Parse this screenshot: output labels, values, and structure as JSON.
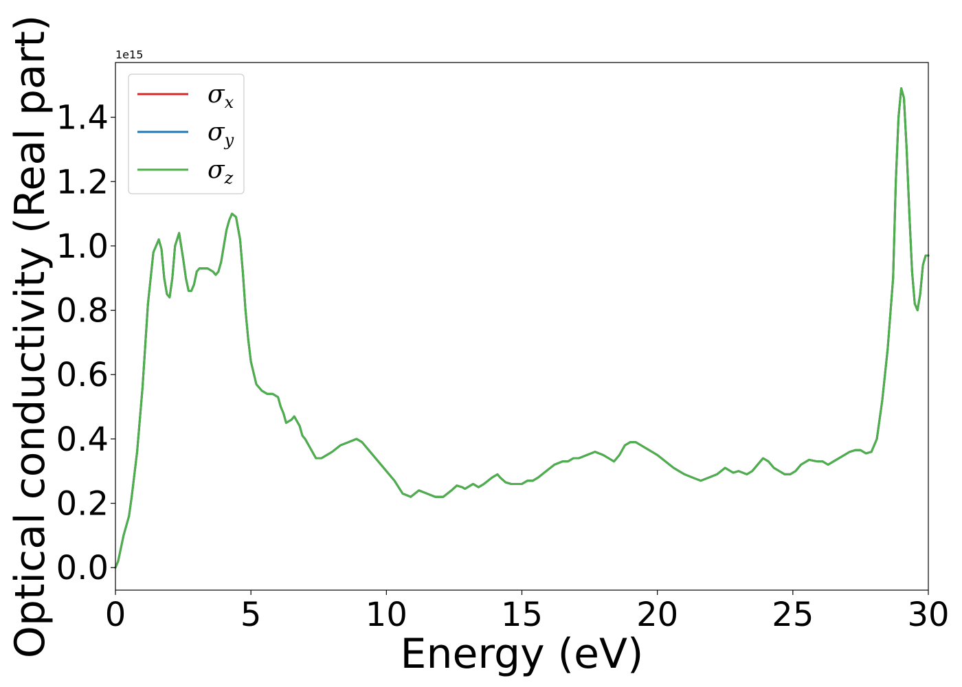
{
  "chart_data": {
    "type": "line",
    "xlabel": "Energy (eV)",
    "ylabel": "Optical conductivity (Real part)",
    "y_offset_label": "1e15",
    "xlim": [
      0,
      30
    ],
    "ylim": [
      -0.07,
      1.57
    ],
    "xticks": [
      0,
      5,
      10,
      15,
      20,
      25,
      30
    ],
    "xtick_labels": [
      "0",
      "5",
      "10",
      "15",
      "20",
      "25",
      "30"
    ],
    "yticks": [
      0.0,
      0.2,
      0.4,
      0.6,
      0.8,
      1.0,
      1.2,
      1.4
    ],
    "ytick_labels": [
      "0.0",
      "0.2",
      "0.4",
      "0.6",
      "0.8",
      "1.0",
      "1.2",
      "1.4"
    ],
    "grid": false,
    "legend_position": "upper-left",
    "x": [
      0,
      0.1,
      0.3,
      0.5,
      0.6,
      0.8,
      1.0,
      1.2,
      1.4,
      1.6,
      1.7,
      1.8,
      1.9,
      2.0,
      2.1,
      2.2,
      2.35,
      2.5,
      2.6,
      2.7,
      2.8,
      2.9,
      3.0,
      3.1,
      3.2,
      3.4,
      3.6,
      3.7,
      3.8,
      3.9,
      4.0,
      4.1,
      4.2,
      4.3,
      4.45,
      4.6,
      4.7,
      4.8,
      4.9,
      5.0,
      5.2,
      5.4,
      5.6,
      5.8,
      6.0,
      6.1,
      6.2,
      6.3,
      6.5,
      6.6,
      6.8,
      6.9,
      7.0,
      7.2,
      7.4,
      7.6,
      7.7,
      7.8,
      8.0,
      8.3,
      8.6,
      8.9,
      9.1,
      9.4,
      9.6,
      9.8,
      10.0,
      10.3,
      10.6,
      10.9,
      11.2,
      11.5,
      11.8,
      12.1,
      12.4,
      12.6,
      12.8,
      12.9,
      13.0,
      13.1,
      13.2,
      13.4,
      13.6,
      13.9,
      14.1,
      14.2,
      14.4,
      14.6,
      14.9,
      15.0,
      15.2,
      15.4,
      15.6,
      15.9,
      16.2,
      16.5,
      16.7,
      16.9,
      17.1,
      17.4,
      17.7,
      18.0,
      18.2,
      18.4,
      18.6,
      18.8,
      19.0,
      19.2,
      19.4,
      19.6,
      19.8,
      20.0,
      20.3,
      20.6,
      21.0,
      21.3,
      21.6,
      21.9,
      22.2,
      22.5,
      22.7,
      22.8,
      23.0,
      23.3,
      23.5,
      23.7,
      23.9,
      24.1,
      24.3,
      24.5,
      24.7,
      24.9,
      25.1,
      25.3,
      25.6,
      25.9,
      26.1,
      26.3,
      26.5,
      26.8,
      27.1,
      27.3,
      27.5,
      27.7,
      27.9,
      28.1,
      28.3,
      28.5,
      28.7,
      28.8,
      28.9,
      29.0,
      29.1,
      29.2,
      29.3,
      29.4,
      29.5,
      29.6,
      29.7,
      29.8,
      29.9,
      30.0
    ],
    "series": [
      {
        "name": "σx",
        "color": "#d62728",
        "values": [
          0.0,
          0.02,
          0.1,
          0.16,
          0.22,
          0.36,
          0.56,
          0.82,
          0.98,
          1.02,
          0.99,
          0.9,
          0.85,
          0.84,
          0.9,
          1.0,
          1.04,
          0.96,
          0.9,
          0.86,
          0.86,
          0.88,
          0.92,
          0.93,
          0.93,
          0.93,
          0.92,
          0.91,
          0.92,
          0.95,
          1.0,
          1.05,
          1.08,
          1.1,
          1.09,
          1.02,
          0.92,
          0.8,
          0.71,
          0.64,
          0.57,
          0.55,
          0.54,
          0.54,
          0.53,
          0.5,
          0.48,
          0.45,
          0.46,
          0.47,
          0.44,
          0.41,
          0.4,
          0.37,
          0.34,
          0.34,
          0.345,
          0.35,
          0.36,
          0.38,
          0.39,
          0.4,
          0.39,
          0.36,
          0.34,
          0.32,
          0.3,
          0.27,
          0.23,
          0.22,
          0.24,
          0.23,
          0.22,
          0.22,
          0.24,
          0.255,
          0.25,
          0.245,
          0.25,
          0.255,
          0.26,
          0.25,
          0.26,
          0.28,
          0.29,
          0.28,
          0.265,
          0.26,
          0.26,
          0.26,
          0.27,
          0.27,
          0.28,
          0.3,
          0.32,
          0.33,
          0.33,
          0.34,
          0.34,
          0.35,
          0.36,
          0.35,
          0.34,
          0.33,
          0.35,
          0.38,
          0.39,
          0.39,
          0.38,
          0.37,
          0.36,
          0.35,
          0.33,
          0.31,
          0.29,
          0.28,
          0.27,
          0.28,
          0.29,
          0.31,
          0.3,
          0.295,
          0.3,
          0.29,
          0.3,
          0.32,
          0.34,
          0.33,
          0.31,
          0.3,
          0.29,
          0.29,
          0.3,
          0.32,
          0.335,
          0.33,
          0.33,
          0.32,
          0.33,
          0.345,
          0.36,
          0.365,
          0.365,
          0.355,
          0.36,
          0.4,
          0.52,
          0.68,
          0.9,
          1.2,
          1.4,
          1.49,
          1.46,
          1.3,
          1.1,
          0.92,
          0.82,
          0.8,
          0.85,
          0.94,
          0.97,
          0.97
        ]
      },
      {
        "name": "σy",
        "color": "#1f77b4",
        "values": [
          0.0,
          0.02,
          0.1,
          0.16,
          0.22,
          0.36,
          0.56,
          0.82,
          0.98,
          1.02,
          0.99,
          0.9,
          0.85,
          0.84,
          0.9,
          1.0,
          1.04,
          0.96,
          0.9,
          0.86,
          0.86,
          0.88,
          0.92,
          0.93,
          0.93,
          0.93,
          0.92,
          0.91,
          0.92,
          0.95,
          1.0,
          1.05,
          1.08,
          1.1,
          1.09,
          1.02,
          0.92,
          0.8,
          0.71,
          0.64,
          0.57,
          0.55,
          0.54,
          0.54,
          0.53,
          0.5,
          0.48,
          0.45,
          0.46,
          0.47,
          0.44,
          0.41,
          0.4,
          0.37,
          0.34,
          0.34,
          0.345,
          0.35,
          0.36,
          0.38,
          0.39,
          0.4,
          0.39,
          0.36,
          0.34,
          0.32,
          0.3,
          0.27,
          0.23,
          0.22,
          0.24,
          0.23,
          0.22,
          0.22,
          0.24,
          0.255,
          0.25,
          0.245,
          0.25,
          0.255,
          0.26,
          0.25,
          0.26,
          0.28,
          0.29,
          0.28,
          0.265,
          0.26,
          0.26,
          0.26,
          0.27,
          0.27,
          0.28,
          0.3,
          0.32,
          0.33,
          0.33,
          0.34,
          0.34,
          0.35,
          0.36,
          0.35,
          0.34,
          0.33,
          0.35,
          0.38,
          0.39,
          0.39,
          0.38,
          0.37,
          0.36,
          0.35,
          0.33,
          0.31,
          0.29,
          0.28,
          0.27,
          0.28,
          0.29,
          0.31,
          0.3,
          0.295,
          0.3,
          0.29,
          0.3,
          0.32,
          0.34,
          0.33,
          0.31,
          0.3,
          0.29,
          0.29,
          0.3,
          0.32,
          0.335,
          0.33,
          0.33,
          0.32,
          0.33,
          0.345,
          0.36,
          0.365,
          0.365,
          0.355,
          0.36,
          0.4,
          0.52,
          0.68,
          0.9,
          1.2,
          1.4,
          1.49,
          1.46,
          1.3,
          1.1,
          0.92,
          0.82,
          0.8,
          0.85,
          0.94,
          0.97,
          0.97
        ]
      },
      {
        "name": "σz",
        "color": "#4daf4a",
        "values": [
          0.0,
          0.02,
          0.1,
          0.16,
          0.22,
          0.36,
          0.56,
          0.82,
          0.98,
          1.02,
          0.99,
          0.9,
          0.85,
          0.84,
          0.9,
          1.0,
          1.04,
          0.96,
          0.9,
          0.86,
          0.86,
          0.88,
          0.92,
          0.93,
          0.93,
          0.93,
          0.92,
          0.91,
          0.92,
          0.95,
          1.0,
          1.05,
          1.08,
          1.1,
          1.09,
          1.02,
          0.92,
          0.8,
          0.71,
          0.64,
          0.57,
          0.55,
          0.54,
          0.54,
          0.53,
          0.5,
          0.48,
          0.45,
          0.46,
          0.47,
          0.44,
          0.41,
          0.4,
          0.37,
          0.34,
          0.34,
          0.345,
          0.35,
          0.36,
          0.38,
          0.39,
          0.4,
          0.39,
          0.36,
          0.34,
          0.32,
          0.3,
          0.27,
          0.23,
          0.22,
          0.24,
          0.23,
          0.22,
          0.22,
          0.24,
          0.255,
          0.25,
          0.245,
          0.25,
          0.255,
          0.26,
          0.25,
          0.26,
          0.28,
          0.29,
          0.28,
          0.265,
          0.26,
          0.26,
          0.26,
          0.27,
          0.27,
          0.28,
          0.3,
          0.32,
          0.33,
          0.33,
          0.34,
          0.34,
          0.35,
          0.36,
          0.35,
          0.34,
          0.33,
          0.35,
          0.38,
          0.39,
          0.39,
          0.38,
          0.37,
          0.36,
          0.35,
          0.33,
          0.31,
          0.29,
          0.28,
          0.27,
          0.28,
          0.29,
          0.31,
          0.3,
          0.295,
          0.3,
          0.29,
          0.3,
          0.32,
          0.34,
          0.33,
          0.31,
          0.3,
          0.29,
          0.29,
          0.3,
          0.32,
          0.335,
          0.33,
          0.33,
          0.32,
          0.33,
          0.345,
          0.36,
          0.365,
          0.365,
          0.355,
          0.36,
          0.4,
          0.52,
          0.68,
          0.9,
          1.2,
          1.4,
          1.49,
          1.46,
          1.3,
          1.1,
          0.92,
          0.82,
          0.8,
          0.85,
          0.94,
          0.97,
          0.97
        ]
      }
    ]
  }
}
